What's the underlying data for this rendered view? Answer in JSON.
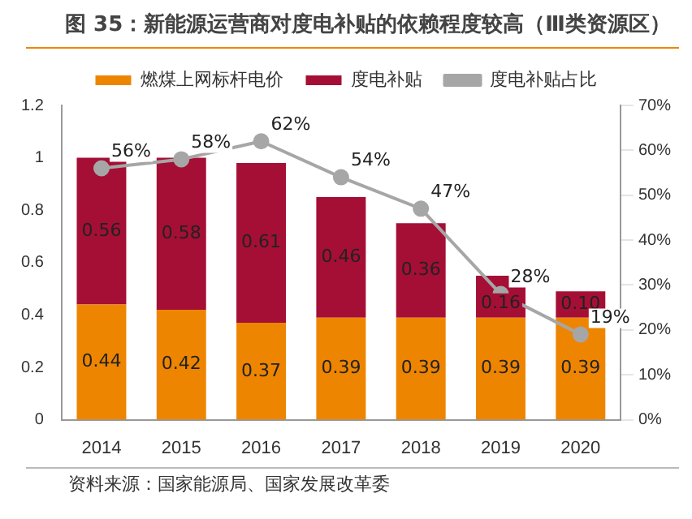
{
  "chart_data": {
    "type": "bar",
    "title": "图 35：新能源运营商对度电补贴的依赖程度较高（Ⅲ类资源区）",
    "stacked": true,
    "categories": [
      "2014",
      "2015",
      "2016",
      "2017",
      "2018",
      "2019",
      "2020"
    ],
    "series": [
      {
        "name": "燃煤上网标杆电价",
        "color": "#ee8500",
        "values": [
          0.44,
          0.42,
          0.37,
          0.39,
          0.39,
          0.39,
          0.39
        ],
        "value_labels": [
          "0.44",
          "0.42",
          "0.37",
          "0.39",
          "0.39",
          "0.39",
          "0.39"
        ]
      },
      {
        "name": "度电补贴",
        "color": "#a50f35",
        "values": [
          0.56,
          0.58,
          0.61,
          0.46,
          0.36,
          0.16,
          0.1
        ],
        "value_labels": [
          "0.56",
          "0.58",
          "0.61",
          "0.46",
          "0.36",
          "0.16",
          "0.10"
        ]
      },
      {
        "name": "度电补贴占比",
        "type": "line",
        "axis": "y2",
        "color": "#a6a6a6",
        "marker": "circle",
        "values": [
          56,
          58,
          62,
          54,
          47,
          28,
          19
        ],
        "value_labels": [
          "56%",
          "58%",
          "62%",
          "54%",
          "47%",
          "28%",
          "19%"
        ]
      }
    ],
    "ylim": [
      0,
      1.2
    ],
    "yticks": [
      0,
      0.2,
      0.4,
      0.6,
      0.8,
      1,
      1.2
    ],
    "y2lim": [
      0,
      70
    ],
    "y2ticks": [
      {
        "value": 0,
        "label": "0%"
      },
      {
        "value": 10,
        "label": "10%"
      },
      {
        "value": 20,
        "label": "20%"
      },
      {
        "value": 30,
        "label": "30%"
      },
      {
        "value": 40,
        "label": "40%"
      },
      {
        "value": 50,
        "label": "50%"
      },
      {
        "value": 60,
        "label": "60%"
      },
      {
        "value": 70,
        "label": "70%"
      }
    ],
    "grid": false,
    "legend": "top",
    "annotations": [
      "资料来源：国家能源局、国家发展改革委"
    ]
  }
}
